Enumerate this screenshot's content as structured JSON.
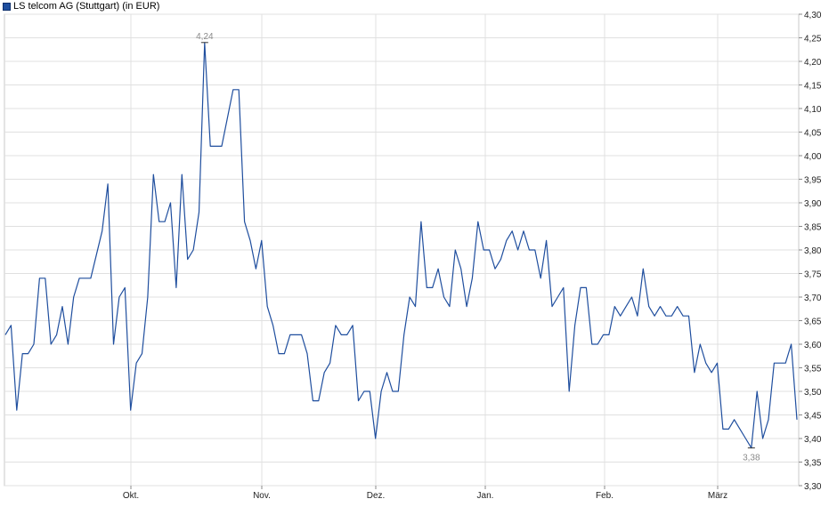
{
  "legend": {
    "label": "LS telcom AG (Stuttgart) (in EUR)",
    "color": "#1f4e9e"
  },
  "chart_data": {
    "type": "line",
    "title": "",
    "xlabel": "",
    "ylabel": "",
    "ylim": [
      3.3,
      4.3
    ],
    "y_ticks": [
      "4,30",
      "4,25",
      "4,20",
      "4,15",
      "4,10",
      "4,05",
      "4,00",
      "3,95",
      "3,90",
      "3,85",
      "3,80",
      "3,75",
      "3,70",
      "3,65",
      "3,60",
      "3,55",
      "3,50",
      "3,45",
      "3,40",
      "3,35",
      "3,30"
    ],
    "x_ticks": [
      "Okt.",
      "Nov.",
      "Dez.",
      "Jan.",
      "Feb.",
      "März"
    ],
    "grid": true,
    "line_color": "#1f4e9e",
    "high": {
      "label": "4,24"
    },
    "low": {
      "label": "3,38"
    },
    "series": [
      {
        "name": "LS telcom AG (Stuttgart) (in EUR)",
        "values": [
          3.62,
          3.64,
          3.46,
          3.58,
          3.58,
          3.6,
          3.74,
          3.74,
          3.6,
          3.62,
          3.68,
          3.6,
          3.7,
          3.74,
          3.74,
          3.74,
          3.79,
          3.84,
          3.94,
          3.6,
          3.7,
          3.72,
          3.46,
          3.56,
          3.58,
          3.7,
          3.96,
          3.86,
          3.86,
          3.9,
          3.72,
          3.96,
          3.78,
          3.8,
          3.88,
          4.24,
          4.02,
          4.02,
          4.02,
          4.08,
          4.14,
          4.14,
          3.86,
          3.82,
          3.76,
          3.82,
          3.68,
          3.64,
          3.58,
          3.58,
          3.62,
          3.62,
          3.62,
          3.58,
          3.48,
          3.48,
          3.54,
          3.56,
          3.64,
          3.62,
          3.62,
          3.64,
          3.48,
          3.5,
          3.5,
          3.4,
          3.5,
          3.54,
          3.5,
          3.5,
          3.62,
          3.7,
          3.68,
          3.86,
          3.72,
          3.72,
          3.76,
          3.7,
          3.68,
          3.8,
          3.76,
          3.68,
          3.74,
          3.86,
          3.8,
          3.8,
          3.76,
          3.78,
          3.82,
          3.84,
          3.8,
          3.84,
          3.8,
          3.8,
          3.74,
          3.82,
          3.68,
          3.7,
          3.72,
          3.5,
          3.64,
          3.72,
          3.72,
          3.6,
          3.6,
          3.62,
          3.62,
          3.68,
          3.66,
          3.68,
          3.7,
          3.66,
          3.76,
          3.68,
          3.66,
          3.68,
          3.66,
          3.66,
          3.68,
          3.66,
          3.66,
          3.54,
          3.6,
          3.56,
          3.54,
          3.56,
          3.42,
          3.42,
          3.44,
          3.42,
          3.4,
          3.38,
          3.5,
          3.4,
          3.44,
          3.56,
          3.56,
          3.56,
          3.6,
          3.44
        ]
      }
    ]
  }
}
